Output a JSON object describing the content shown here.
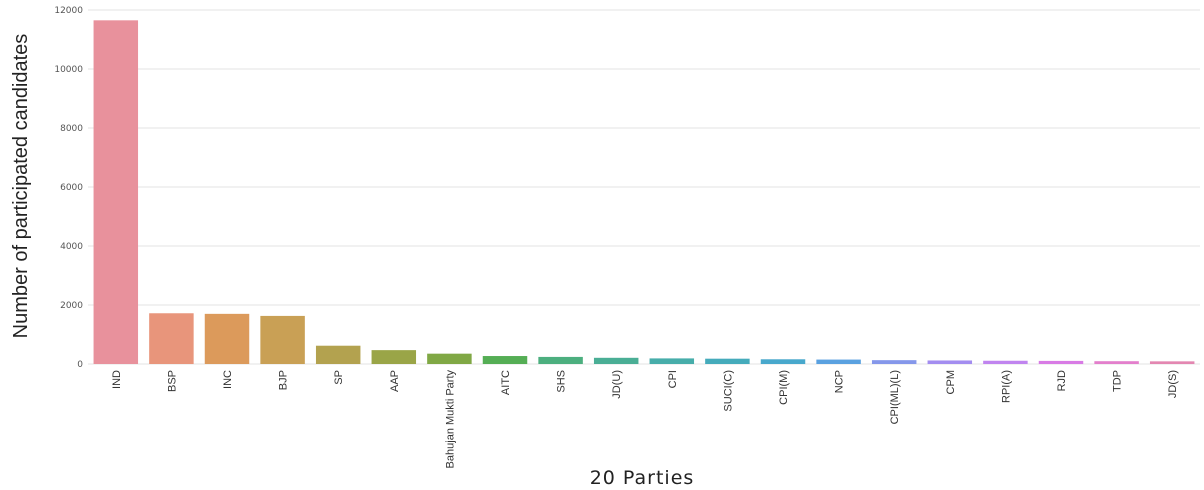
{
  "chart_data": {
    "type": "bar",
    "title": "",
    "xlabel": "20 Parties",
    "ylabel": "Number of participated candidates",
    "ylim": [
      0,
      12000
    ],
    "yticks": [
      "0",
      "2000",
      "4000",
      "6000",
      "8000",
      "10000",
      "12000"
    ],
    "grid": true,
    "legend": "none",
    "categories": [
      "IND",
      "BSP",
      "INC",
      "BJP",
      "SP",
      "AAP",
      "Bahujan Mukti Party",
      "AITC",
      "SHS",
      "JD(U)",
      "CPI",
      "SUCI(C)",
      "CPI(M)",
      "NCP",
      "CPI(ML)(L)",
      "CPM",
      "RPI(A)",
      "RJD",
      "TDP",
      "JD(S)"
    ],
    "values": [
      11650,
      1720,
      1700,
      1630,
      620,
      470,
      350,
      270,
      240,
      210,
      190,
      180,
      160,
      150,
      130,
      120,
      110,
      105,
      95,
      90
    ],
    "colors": [
      "#e8919c",
      "#e8957b",
      "#dc9a5b",
      "#c9a055",
      "#b3a24f",
      "#9aa547",
      "#80a845",
      "#55ae55",
      "#4caf7f",
      "#4aae95",
      "#47adaa",
      "#45abbb",
      "#48a8cc",
      "#5aa1e0",
      "#8597ea",
      "#a38df0",
      "#c084ef",
      "#d87be5",
      "#e37fcc",
      "#e387b1"
    ]
  }
}
